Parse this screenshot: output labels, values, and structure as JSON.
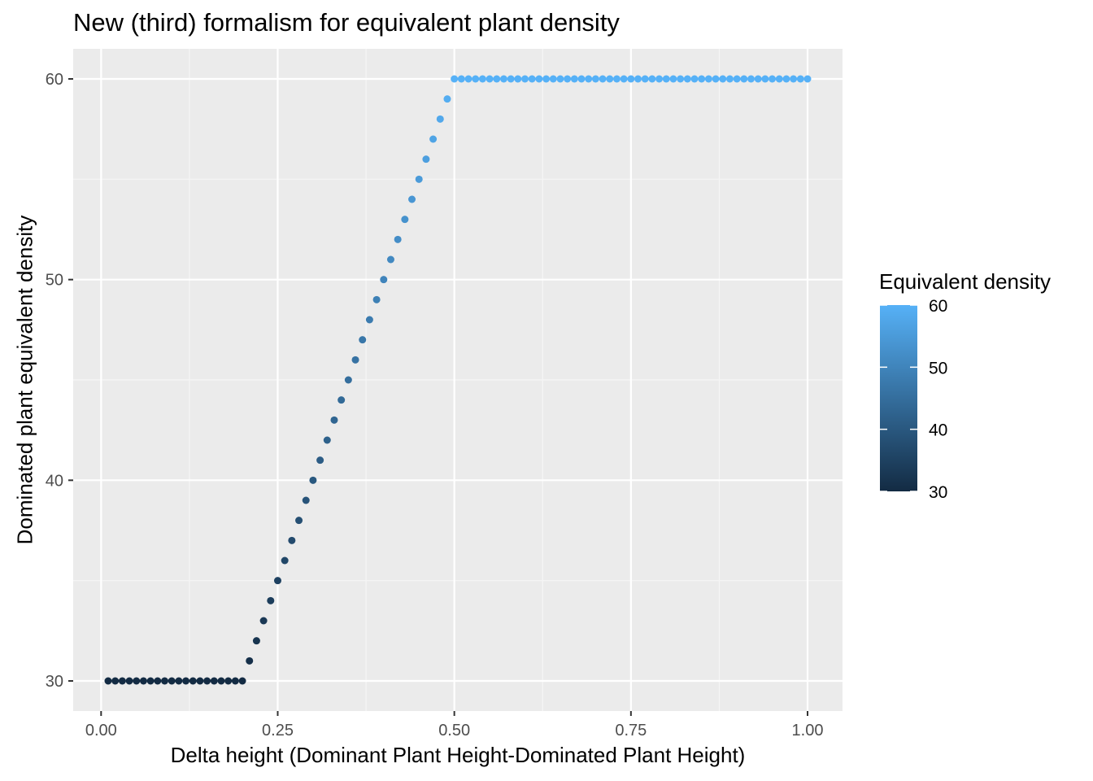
{
  "chart_data": {
    "type": "scatter",
    "title": "New (third) formalism for equivalent plant density",
    "xlabel": "Delta height (Dominant Plant Height-Dominated Plant Height)",
    "ylabel": "Dominated plant equivalent density",
    "xlim": [
      -0.0395,
      1.0495
    ],
    "ylim": [
      28.5,
      61.5
    ],
    "x_ticks": [
      0.0,
      0.25,
      0.5,
      0.75,
      1.0
    ],
    "x_tick_labels": [
      "0.00",
      "0.25",
      "0.50",
      "0.75",
      "1.00"
    ],
    "y_ticks": [
      30,
      40,
      50,
      60
    ],
    "y_tick_labels": [
      "30",
      "40",
      "50",
      "60"
    ],
    "grid": true,
    "series": [
      {
        "x": [
          0.01,
          0.02,
          0.03,
          0.04,
          0.05,
          0.06,
          0.07,
          0.08,
          0.09,
          0.1,
          0.11,
          0.12,
          0.13,
          0.14,
          0.15,
          0.16,
          0.17,
          0.18,
          0.19,
          0.2,
          0.21,
          0.22,
          0.23,
          0.24,
          0.25,
          0.26,
          0.27,
          0.28,
          0.29,
          0.3,
          0.31,
          0.32,
          0.33,
          0.34,
          0.35,
          0.36,
          0.37,
          0.38,
          0.39,
          0.4,
          0.41,
          0.42,
          0.43,
          0.44,
          0.45,
          0.46,
          0.47,
          0.48,
          0.49,
          0.5,
          0.51,
          0.52,
          0.53,
          0.54,
          0.55,
          0.56,
          0.57,
          0.58,
          0.59,
          0.6,
          0.61,
          0.62,
          0.63,
          0.64,
          0.65,
          0.66,
          0.67,
          0.68,
          0.69,
          0.7,
          0.71,
          0.72,
          0.73,
          0.74,
          0.75,
          0.76,
          0.77,
          0.78,
          0.79,
          0.8,
          0.81,
          0.82,
          0.83,
          0.84,
          0.85,
          0.86,
          0.87,
          0.88,
          0.89,
          0.9,
          0.91,
          0.92,
          0.93,
          0.94,
          0.95,
          0.96,
          0.97,
          0.98,
          0.99,
          1.0
        ],
        "y": [
          30,
          30,
          30,
          30,
          30,
          30,
          30,
          30,
          30,
          30,
          30,
          30,
          30,
          30,
          30,
          30,
          30,
          30,
          30,
          30,
          31,
          32,
          33,
          34,
          35,
          36,
          37,
          38,
          39,
          40,
          41,
          42,
          43,
          44,
          45,
          46,
          47,
          48,
          49,
          50,
          51,
          52,
          53,
          54,
          55,
          56,
          57,
          58,
          59,
          60,
          60,
          60,
          60,
          60,
          60,
          60,
          60,
          60,
          60,
          60,
          60,
          60,
          60,
          60,
          60,
          60,
          60,
          60,
          60,
          60,
          60,
          60,
          60,
          60,
          60,
          60,
          60,
          60,
          60,
          60,
          60,
          60,
          60,
          60,
          60,
          60,
          60,
          60,
          60,
          60,
          60,
          60,
          60,
          60,
          60,
          60,
          60,
          60,
          60,
          60
        ]
      }
    ],
    "legend": {
      "title": "Equivalent density",
      "placement": "right",
      "colorbar_min": 30,
      "colorbar_max": 60,
      "ticks": [
        30,
        40,
        50,
        60
      ],
      "tick_labels": [
        "30",
        "40",
        "50",
        "60"
      ],
      "low_color": "#132B43",
      "high_color": "#56B1F7"
    },
    "colors": {
      "panel_background": "#EBEBEB",
      "grid_major": "#FFFFFF",
      "grid_minor": "#F5F5F5",
      "axis_text": "#4D4D4D"
    }
  }
}
